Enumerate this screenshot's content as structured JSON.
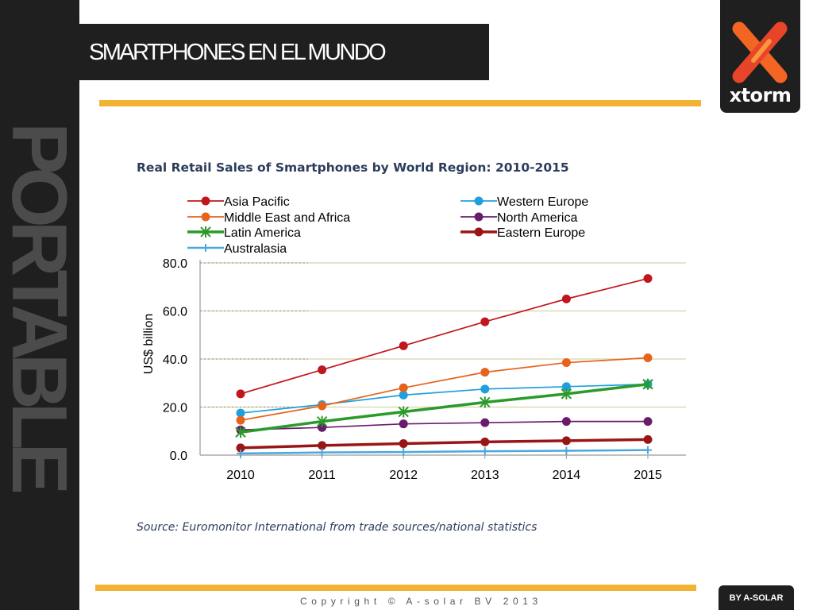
{
  "slide": {
    "sidebar_word": "PORTABLE",
    "title": "SMARTPHONES EN EL MUNDO",
    "logo_text": "xtorm",
    "copyright": "Copyright © A-solar BV 2013",
    "badge": "BY A-SOLAR"
  },
  "colors": {
    "dark": "#1f1f1f",
    "accent_gold": "#f2b233",
    "logo_orange": "#f26522",
    "logo_red": "#e8442a"
  },
  "chart_data": {
    "type": "line",
    "title": "Real Retail Sales of Smartphones by World Region: 2010-2015",
    "ylabel": "US$ billion",
    "xlabel": "",
    "source": "Source: Euromonitor International from trade sources/national statistics",
    "categories": [
      "2010",
      "2011",
      "2012",
      "2013",
      "2014",
      "2015"
    ],
    "yticks": [
      "0.0",
      "20.0",
      "40.0",
      "60.0",
      "80.0"
    ],
    "ylim": [
      0,
      80
    ],
    "grid": "horizontal",
    "legend_position": "top",
    "series": [
      {
        "name": "Asia Pacific",
        "color": "#c0171e",
        "marker": "circle",
        "values": [
          25.5,
          35.5,
          45.5,
          55.5,
          65,
          73.5
        ]
      },
      {
        "name": "Western Europe",
        "color": "#1fa0dc",
        "marker": "circle",
        "values": [
          17.5,
          21,
          25,
          27.5,
          28.5,
          29.5
        ]
      },
      {
        "name": "Middle East and Africa",
        "color": "#e6631c",
        "marker": "circle",
        "values": [
          14.5,
          20.5,
          28,
          34.5,
          38.5,
          40.5
        ]
      },
      {
        "name": "North America",
        "color": "#6b1b6b",
        "marker": "circle",
        "values": [
          10.5,
          11.5,
          13,
          13.5,
          14,
          14
        ]
      },
      {
        "name": "Latin America",
        "color": "#2a9a2a",
        "marker": "star",
        "values": [
          9.5,
          14,
          18,
          22,
          25.5,
          29.5
        ]
      },
      {
        "name": "Eastern Europe",
        "color": "#9a1616",
        "marker": "circle",
        "values": [
          3,
          4,
          4.8,
          5.5,
          6,
          6.5
        ]
      },
      {
        "name": "Australasia",
        "color": "#4aa8dc",
        "marker": "plus",
        "values": [
          0.7,
          1.1,
          1.3,
          1.6,
          1.8,
          2.1
        ]
      }
    ]
  }
}
